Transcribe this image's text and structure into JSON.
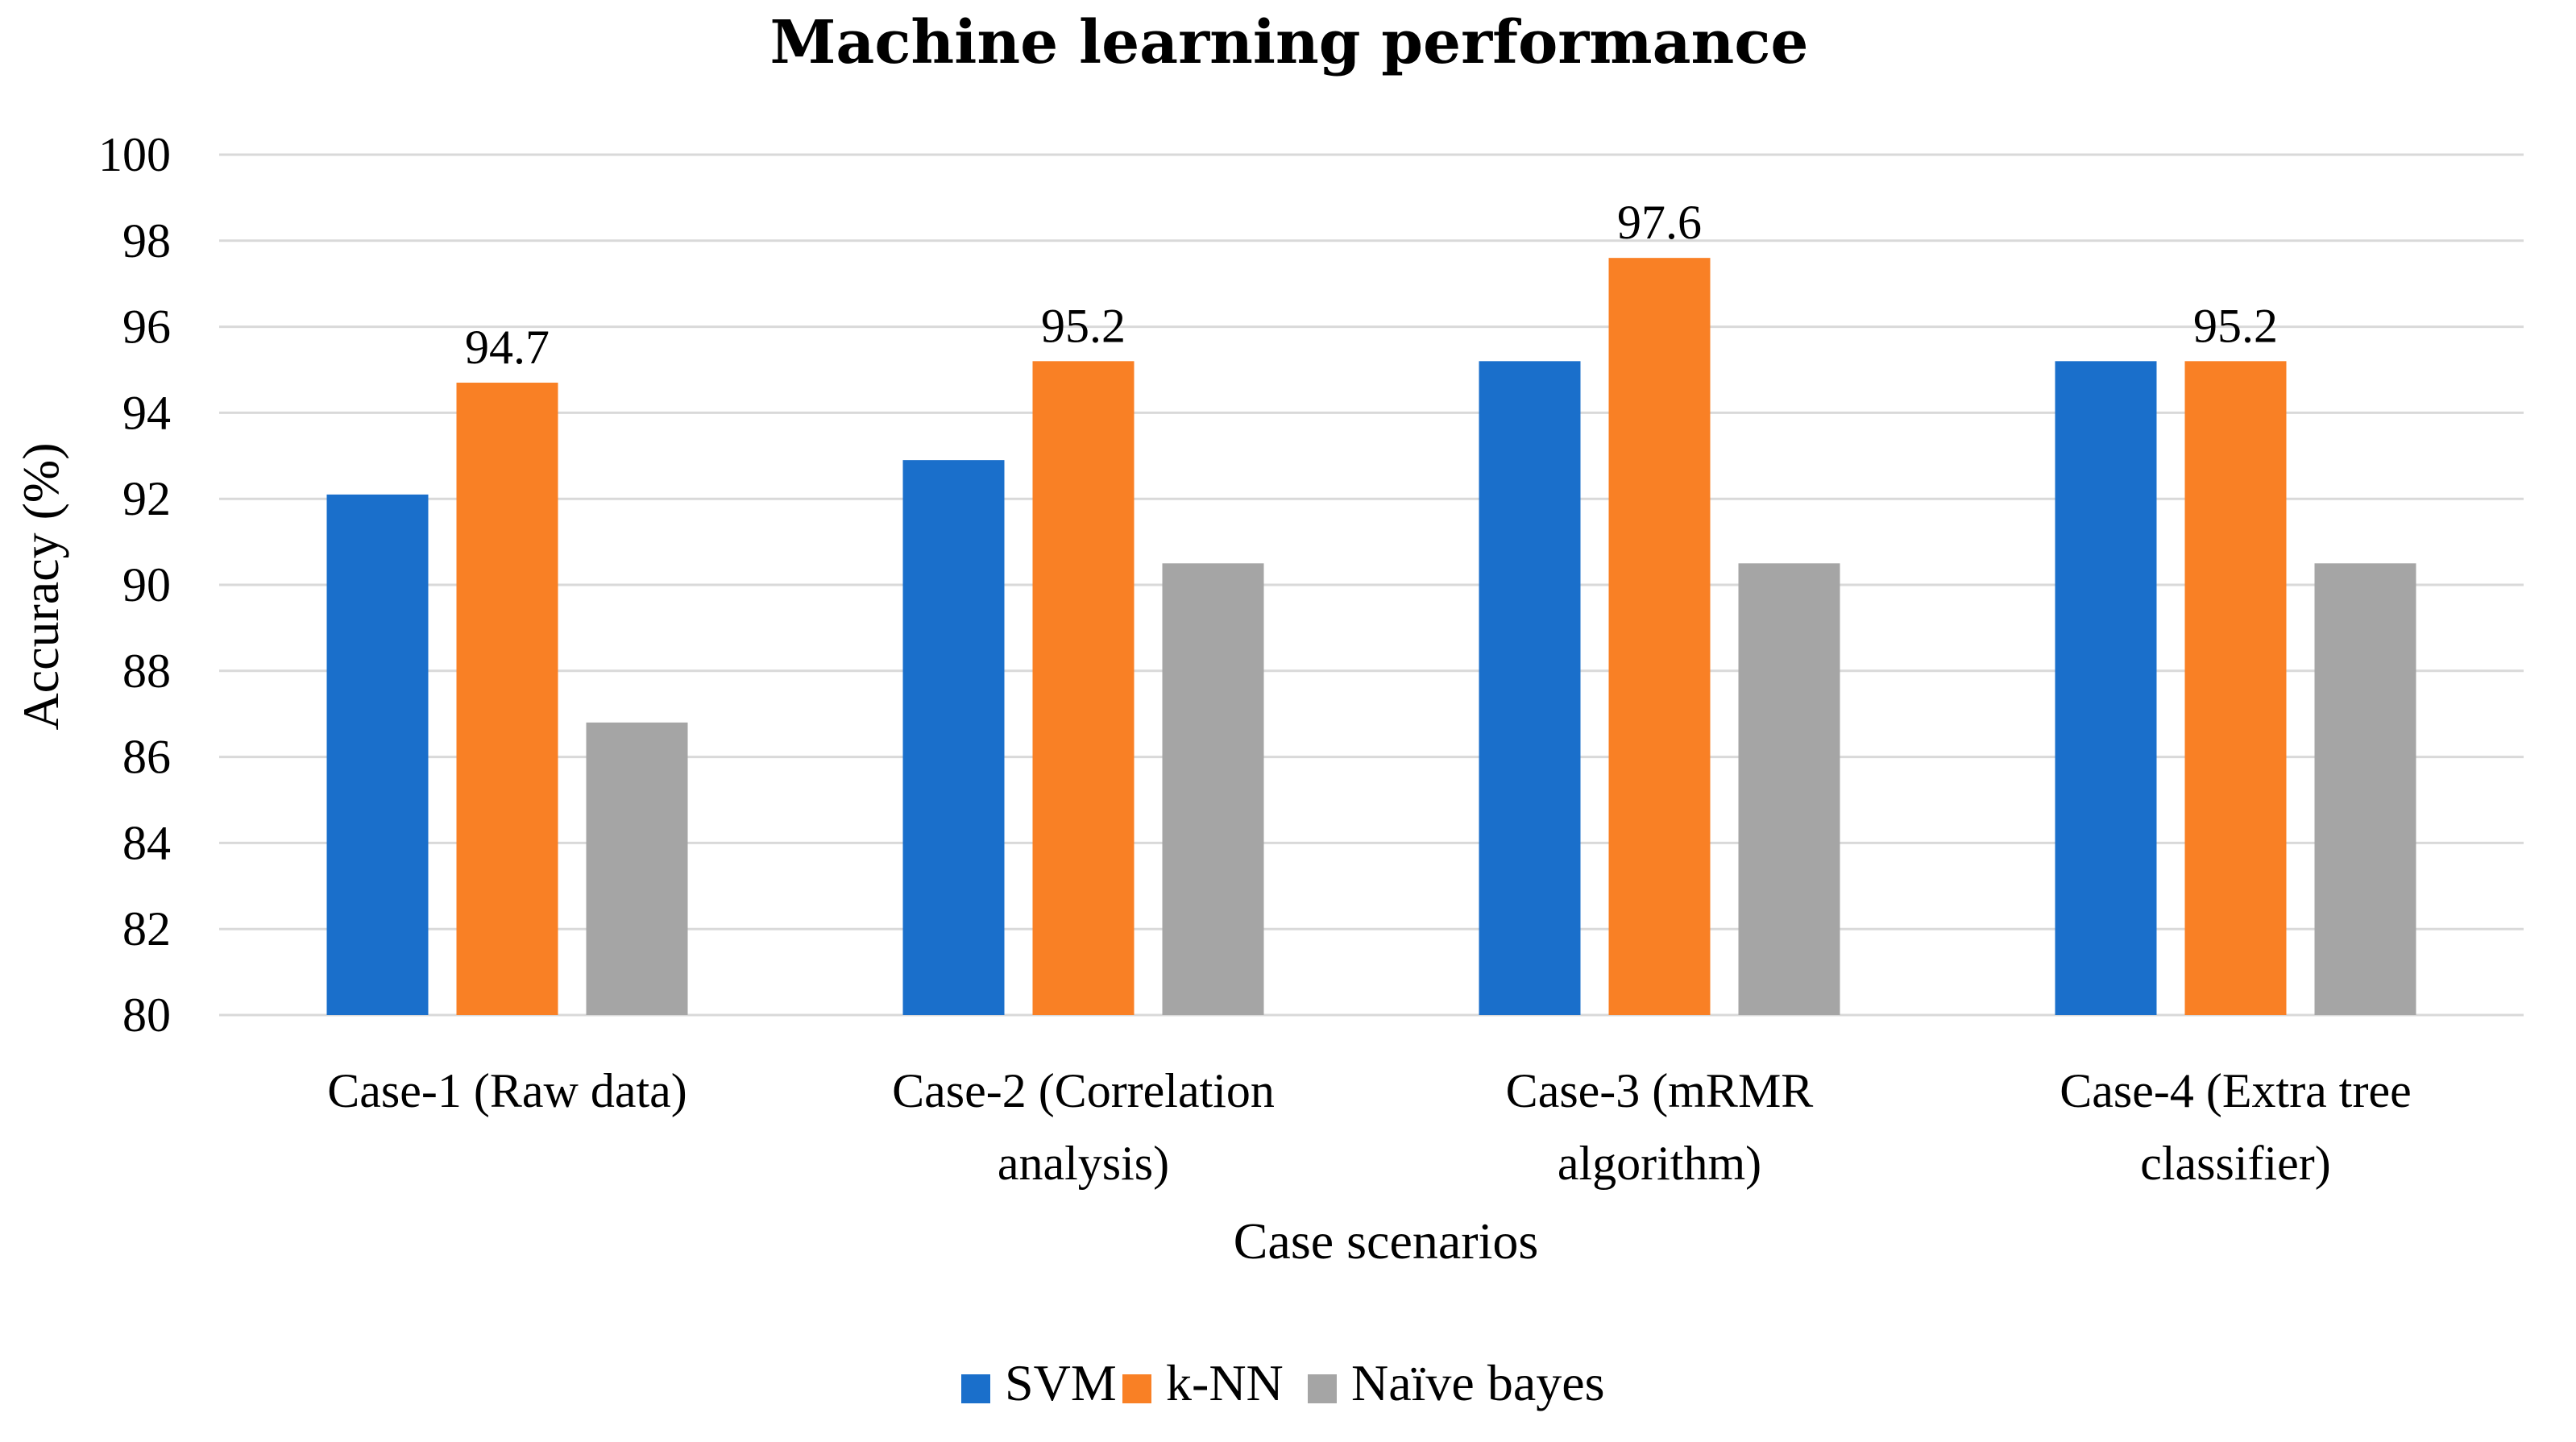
{
  "chart_data": {
    "type": "bar",
    "title": "Machine learning performance",
    "xlabel": "Case scenarios",
    "ylabel": "Accuracy (%)",
    "ylim": [
      80,
      100
    ],
    "yticks": [
      "80",
      "82",
      "84",
      "86",
      "88",
      "90",
      "92",
      "94",
      "96",
      "98",
      "100"
    ],
    "ytick_values": [
      80,
      82,
      84,
      86,
      88,
      90,
      92,
      94,
      96,
      98,
      100
    ],
    "grid": true,
    "legend_position": "bottom-center",
    "categories": [
      [
        "Case-1 (Raw data)"
      ],
      [
        "Case-2 (Correlation",
        "analysis)"
      ],
      [
        "Case-3 (mRMR",
        "algorithm)"
      ],
      [
        "Case-4 (Extra tree",
        "classifier)"
      ]
    ],
    "series": [
      {
        "name": "SVM",
        "color": "#1a6fcb",
        "values": [
          92.1,
          92.9,
          95.2,
          95.2
        ]
      },
      {
        "name": "k-NN",
        "color": "#f98025",
        "values": [
          94.7,
          95.2,
          97.6,
          95.2
        ]
      },
      {
        "name": "Naïve bayes",
        "color": "#a5a5a5",
        "values": [
          86.8,
          90.5,
          90.5,
          90.5
        ]
      }
    ],
    "data_labels": [
      {
        "series": 1,
        "category": 0,
        "text": "94.7"
      },
      {
        "series": 1,
        "category": 1,
        "text": "95.2"
      },
      {
        "series": 1,
        "category": 2,
        "text": "97.6"
      },
      {
        "series": 1,
        "category": 3,
        "text": "95.2"
      }
    ]
  }
}
